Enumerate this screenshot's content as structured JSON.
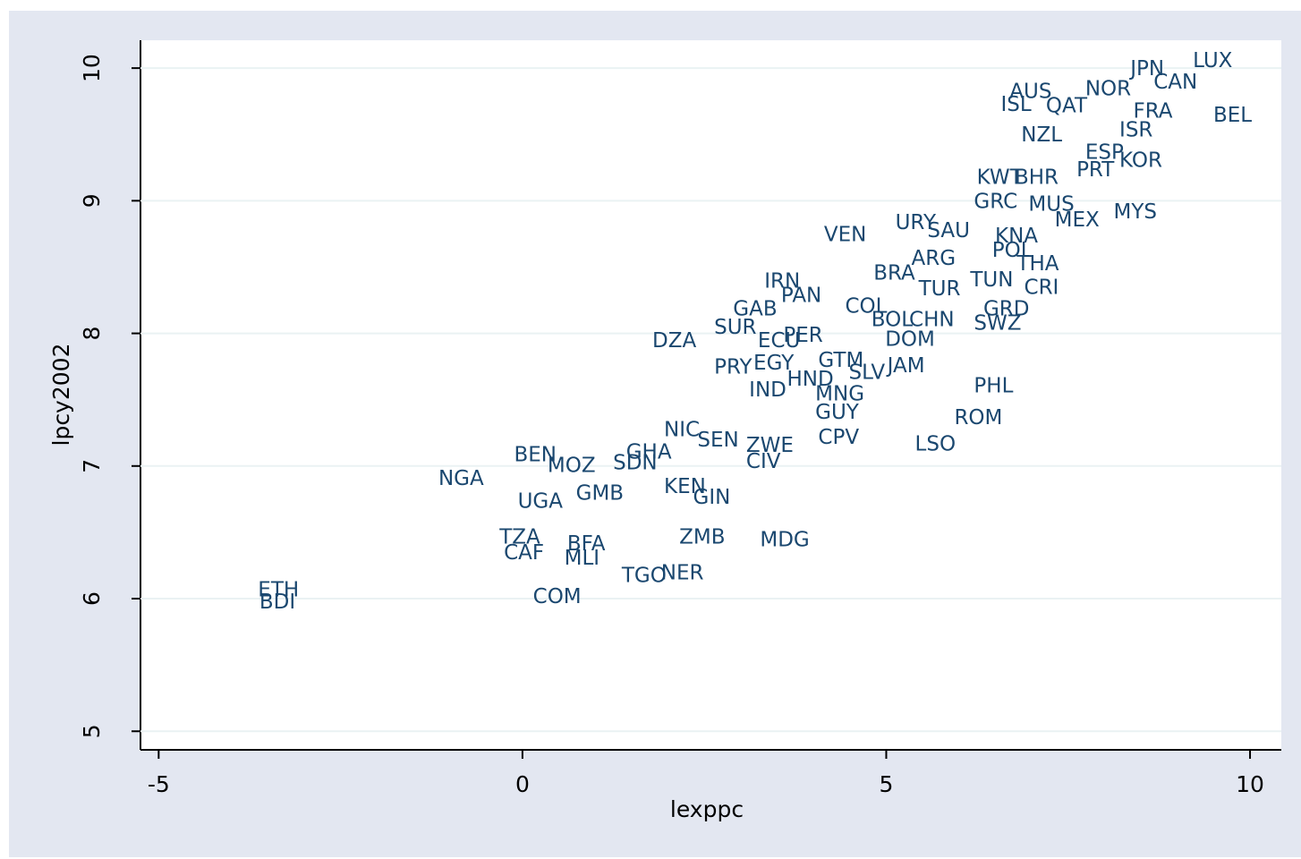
{
  "chart_data": {
    "type": "scatter",
    "xlabel": "lexppc",
    "ylabel": "lpcy2002",
    "color": "#1a476f",
    "xlim": [
      -5.25,
      10.43
    ],
    "ylim": [
      4.86,
      10.21
    ],
    "xticks": [
      -5,
      0,
      5,
      10
    ],
    "yticks": [
      5,
      6,
      7,
      8,
      9,
      10
    ],
    "grid": true,
    "labels": [
      "LUX",
      "JPN",
      "ISL",
      "QAT",
      "AUS",
      "NOR",
      "CAN",
      "ISR",
      "FRA",
      "BEL",
      "NZL",
      "ESP",
      "PRT",
      "KOR",
      "KWT",
      "BHR",
      "GRC",
      "MUS",
      "MEX",
      "MYS",
      "VEN",
      "URY",
      "SAU",
      "KNA",
      "POL",
      "THA",
      "ARG",
      "BRA",
      "TUN",
      "CRI",
      "TUR",
      "IRN",
      "PAN",
      "COL",
      "GAB",
      "GRD",
      "SUR",
      "CHN",
      "SWZ",
      "BOL",
      "PER",
      "ECU",
      "DZA",
      "DOM",
      "PRY",
      "EGY",
      "GTM",
      "SLV",
      "JAM",
      "IND",
      "MNG",
      "HND",
      "PHL",
      "GUY",
      "ROM",
      "NIC",
      "SEN",
      "CPV",
      "LSO",
      "ZWE",
      "CIV",
      "BEN",
      "MOZ",
      "SDN",
      "GHA",
      "NGA",
      "UGA",
      "GMB",
      "KEN",
      "GIN",
      "TZA",
      "CAF",
      "BFA",
      "MLI",
      "ZMB",
      "MDG",
      "TGO",
      "NER",
      "COM",
      "ETH",
      "BDI"
    ],
    "x": [
      9.19,
      8.33,
      6.55,
      7.17,
      6.67,
      7.71,
      8.65,
      8.18,
      8.37,
      9.47,
      6.83,
      7.71,
      7.59,
      8.18,
      6.22,
      6.74,
      6.18,
      6.93,
      7.29,
      8.1,
      4.12,
      5.1,
      5.54,
      6.47,
      6.43,
      6.77,
      5.32,
      4.8,
      6.13,
      6.87,
      5.42,
      3.3,
      3.53,
      4.41,
      2.87,
      6.31,
      2.61,
      5.29,
      6.18,
      4.77,
      3.56,
      3.21,
      1.76,
      4.96,
      2.61,
      3.15,
      4.04,
      4.46,
      4.99,
      3.09,
      4.0,
      3.61,
      6.18,
      4.0,
      5.91,
      1.92,
      2.38,
      4.04,
      5.37,
      3.05,
      3.05,
      -0.14,
      0.32,
      1.22,
      1.4,
      -1.18,
      -0.09,
      0.71,
      1.92,
      2.32,
      -0.34,
      -0.28,
      0.59,
      0.55,
      2.13,
      3.24,
      1.34,
      1.88,
      0.12,
      -3.66,
      -3.64
    ],
    "y": [
      10.05,
      9.99,
      9.72,
      9.71,
      9.82,
      9.84,
      9.89,
      9.53,
      9.67,
      9.64,
      9.49,
      9.36,
      9.23,
      9.3,
      9.17,
      9.17,
      8.99,
      8.97,
      8.85,
      8.91,
      8.74,
      8.83,
      8.77,
      8.73,
      8.62,
      8.52,
      8.56,
      8.45,
      8.4,
      8.34,
      8.33,
      8.39,
      8.28,
      8.2,
      8.18,
      8.18,
      8.04,
      8.1,
      8.07,
      8.1,
      7.98,
      7.94,
      7.94,
      7.95,
      7.74,
      7.77,
      7.79,
      7.7,
      7.75,
      7.57,
      7.54,
      7.65,
      7.6,
      7.4,
      7.36,
      7.27,
      7.19,
      7.21,
      7.16,
      7.15,
      7.03,
      7.08,
      7.0,
      7.02,
      7.1,
      6.9,
      6.73,
      6.79,
      6.84,
      6.76,
      6.46,
      6.34,
      6.41,
      6.3,
      6.46,
      6.44,
      6.17,
      6.19,
      6.01,
      6.06,
      5.97
    ]
  }
}
